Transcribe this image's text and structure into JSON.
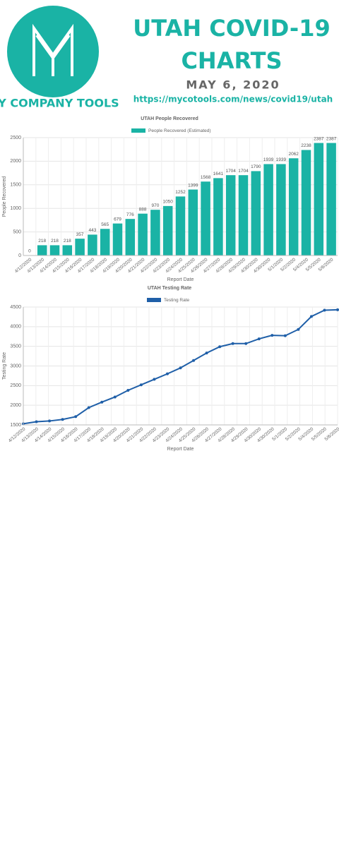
{
  "header": {
    "brand": "MY COMPANY TOOLS",
    "title_line1": "UTAH COVID-19",
    "title_line2": "CHARTS",
    "date": "MAY 6, 2020",
    "url": "https://mycotools.com/news/covid19/utah"
  },
  "chart_data": [
    {
      "type": "bar",
      "title": "UTAH People Recovered",
      "x_label": "Report Date",
      "y_label": "People Recovered",
      "categories": [
        "4/12/2020",
        "4/13/2020",
        "4/14/2020",
        "4/15/2020",
        "4/16/2020",
        "4/17/2020",
        "4/18/2020",
        "4/19/2020",
        "4/20/2020",
        "4/21/2020",
        "4/22/2020",
        "4/23/2020",
        "4/24/2020",
        "4/25/2020",
        "4/26/2020",
        "4/27/2020",
        "4/28/2020",
        "4/29/2020",
        "4/30/2020",
        "4/30/2020",
        "5/1/2020",
        "5/2/2020",
        "5/4/2020",
        "5/5/2020",
        "5/6/2020"
      ],
      "series": [
        {
          "name": "People Recovered (Estimated)",
          "color": "#1ab3a5",
          "values": [
            0,
            218,
            218,
            218,
            357,
            443,
            565,
            679,
            776,
            888,
            970,
            1050,
            1252,
            1399,
            1568,
            1641,
            1704,
            1704,
            1790,
            1939,
            1939,
            2062,
            2238,
            2387,
            2387
          ]
        }
      ],
      "ylim": [
        0,
        2500
      ],
      "yticks": [
        0,
        500,
        1000,
        1500,
        2000,
        2500
      ],
      "grid": true,
      "value_labels_shown": true
    },
    {
      "type": "line",
      "title": "UTAH Testing Rate",
      "x_label": "Report Date",
      "y_label": "Testing Rate",
      "categories": [
        "4/12/2020",
        "4/13/2020",
        "4/14/2020",
        "4/15/2020",
        "4/16/2020",
        "4/17/2020",
        "4/18/2020",
        "4/19/2020",
        "4/20/2020",
        "4/21/2020",
        "4/22/2020",
        "4/23/2020",
        "4/24/2020",
        "4/25/2020",
        "4/26/2020",
        "4/27/2020",
        "4/28/2020",
        "4/29/2020",
        "4/30/2020",
        "4/30/2020",
        "5/1/2020",
        "5/2/2020",
        "5/4/2020",
        "5/5/2020",
        "5/6/2020"
      ],
      "series": [
        {
          "name": "Testing Rate",
          "color": "#1f5fa8",
          "values": [
            1530,
            1580,
            1600,
            1640,
            1710,
            1940,
            2080,
            2210,
            2380,
            2520,
            2660,
            2800,
            2950,
            3140,
            3330,
            3490,
            3570,
            3570,
            3690,
            3780,
            3770,
            3930,
            4260,
            4420,
            4430
          ]
        }
      ],
      "ylim": [
        1500,
        4500
      ],
      "yticks": [
        1500,
        2000,
        2500,
        3000,
        3500,
        4000,
        4500
      ],
      "grid": true,
      "value_labels_shown": false
    }
  ]
}
